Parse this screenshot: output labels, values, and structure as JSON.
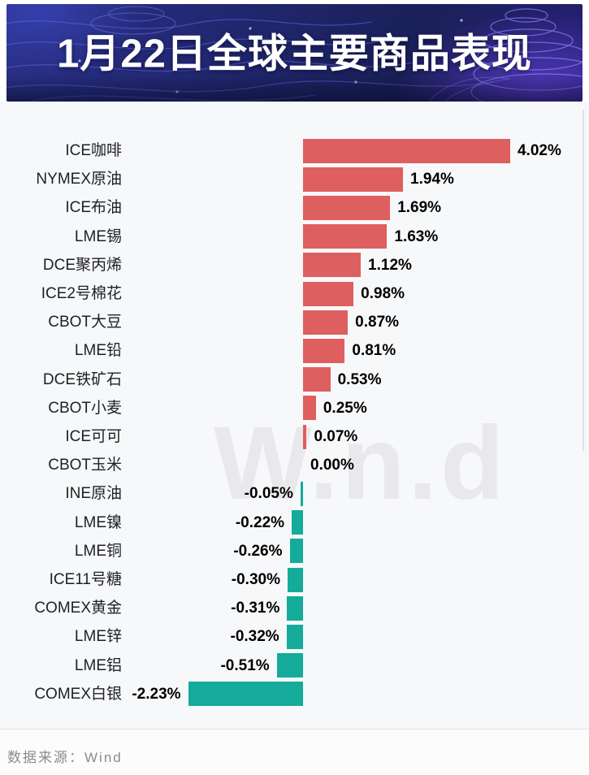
{
  "header": {
    "title": "1月22日全球主要商品表现"
  },
  "watermark": {
    "text": "W.n.d"
  },
  "footer": {
    "source": "数据来源：Wind"
  },
  "chart_data": {
    "type": "bar",
    "orientation": "horizontal",
    "title": "1月22日全球主要商品表现",
    "value_unit": "%",
    "categories": [
      "ICE咖啡",
      "NYMEX原油",
      "ICE布油",
      "LME锡",
      "DCE聚丙烯",
      "ICE2号棉花",
      "CBOT大豆",
      "LME铅",
      "DCE铁矿石",
      "CBOT小麦",
      "ICE可可",
      "CBOT玉米",
      "INE原油",
      "LME镍",
      "LME铜",
      "ICE11号糖",
      "COMEX黄金",
      "LME锌",
      "LME铝",
      "COMEX白银"
    ],
    "values": [
      4.02,
      1.94,
      1.69,
      1.63,
      1.12,
      0.98,
      0.87,
      0.81,
      0.53,
      0.25,
      0.07,
      0.0,
      -0.05,
      -0.22,
      -0.26,
      -0.3,
      -0.31,
      -0.32,
      -0.51,
      -2.23
    ],
    "labels": [
      "4.02%",
      "1.94%",
      "1.69%",
      "1.63%",
      "1.12%",
      "0.98%",
      "0.87%",
      "0.81%",
      "0.53%",
      "0.25%",
      "0.07%",
      "0.00%",
      "-0.05%",
      "-0.22%",
      "-0.26%",
      "-0.30%",
      "-0.31%",
      "-0.32%",
      "-0.51%",
      "-2.23%"
    ],
    "positive_color": "#de5f5f",
    "negative_color": "#14ab9b",
    "xlim": [
      -2.23,
      4.02
    ],
    "grid": false,
    "legend": null,
    "source_note": "数据来源：Wind"
  }
}
